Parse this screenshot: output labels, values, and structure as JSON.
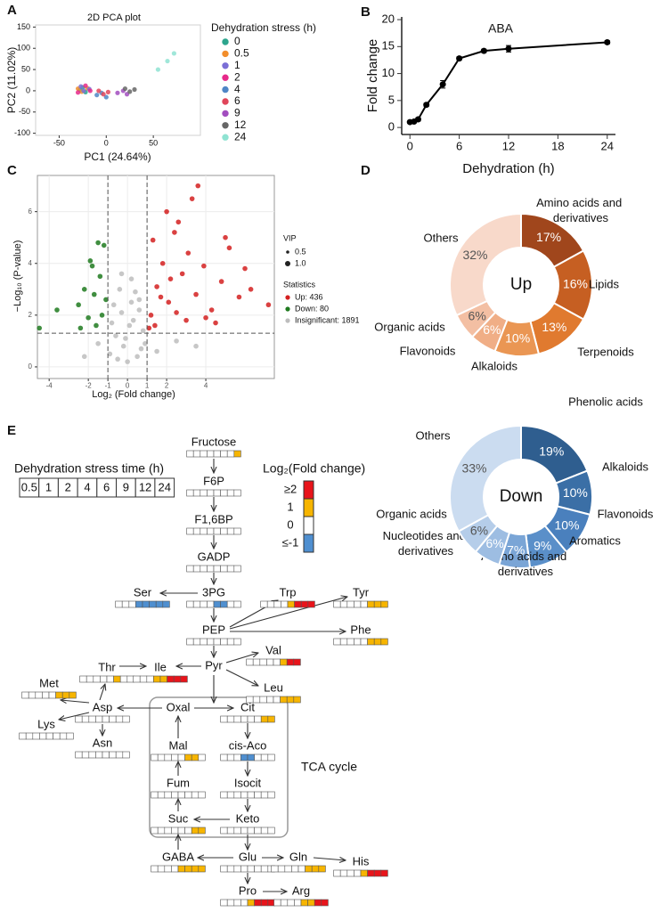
{
  "panel_labels": [
    "A",
    "B",
    "C",
    "D",
    "E"
  ],
  "chart_data": [
    {
      "type": "scatter",
      "title": "2D PCA plot",
      "x_label": "PC1 (24.64%)",
      "y_label": "PC2 (11.02%)",
      "xlim": [
        -75,
        100
      ],
      "ylim": [
        -105,
        155
      ],
      "xticks": [
        -50,
        0,
        50
      ],
      "yticks": [
        -100,
        -50,
        0,
        50,
        100,
        150
      ],
      "legend_title": "Dehydration stress (h)",
      "legend_position": "right",
      "series": [
        {
          "name": "0",
          "color": "#2ca58d",
          "x": [
            -28,
            -25,
            -22
          ],
          "y": [
            2,
            8,
            -3
          ]
        },
        {
          "name": "0.5",
          "color": "#f28e2b",
          "x": [
            -30,
            -26,
            -20
          ],
          "y": [
            5,
            -2,
            6
          ]
        },
        {
          "name": "1",
          "color": "#7b6fd6",
          "x": [
            -27,
            -24,
            -18
          ],
          "y": [
            10,
            0,
            4
          ]
        },
        {
          "name": "2",
          "color": "#e7298a",
          "x": [
            -30,
            -22,
            -17
          ],
          "y": [
            -4,
            12,
            0
          ]
        },
        {
          "name": "4",
          "color": "#4f86c6",
          "x": [
            -10,
            -5,
            0
          ],
          "y": [
            -10,
            -5,
            -15
          ]
        },
        {
          "name": "6",
          "color": "#e0455a",
          "x": [
            -8,
            -3,
            2
          ],
          "y": [
            0,
            -8,
            -3
          ]
        },
        {
          "name": "9",
          "color": "#a24dbf",
          "x": [
            12,
            18,
            22
          ],
          "y": [
            -5,
            0,
            -8
          ]
        },
        {
          "name": "12",
          "color": "#666666",
          "x": [
            20,
            25,
            30
          ],
          "y": [
            5,
            -2,
            3
          ]
        },
        {
          "name": "24",
          "color": "#8fe3d2",
          "x": [
            55,
            65,
            72
          ],
          "y": [
            50,
            70,
            88
          ]
        }
      ]
    },
    {
      "type": "line",
      "title": "ABA",
      "x_label": "Dehydration (h)",
      "y_label": "Fold change",
      "x": [
        0,
        0.5,
        1,
        2,
        4,
        6,
        9,
        12,
        24
      ],
      "values": [
        1,
        1.1,
        1.5,
        4.2,
        8,
        12.8,
        14.2,
        14.6,
        15.8
      ],
      "errors": [
        0.2,
        0.2,
        0.3,
        0.3,
        0.7,
        0.3,
        0.3,
        0.6,
        0.3
      ],
      "color": "#000000",
      "xlim": [
        -1,
        25
      ],
      "ylim": [
        -1.3,
        20.5
      ],
      "xticks": [
        0,
        6,
        12,
        18,
        24
      ],
      "yticks": [
        0,
        5,
        10,
        15,
        20
      ]
    },
    {
      "type": "scatter",
      "x_label": "Log₂ (Fold change)",
      "y_label": "−Log₁₀ (P-value)",
      "xlim": [
        -4.6,
        7.5
      ],
      "ylim": [
        -0.45,
        7.4
      ],
      "xticks": [
        -4,
        -2,
        -1,
        0,
        1,
        2,
        4
      ],
      "yticks": [
        0,
        2,
        4,
        6
      ],
      "grid": true,
      "threshold_x": [
        -1,
        1
      ],
      "threshold_y": 1.3,
      "size_legend": {
        "title": "VIP",
        "items": [
          0.5,
          {
            "value": 1,
            "label": "1.0"
          }
        ]
      },
      "legend_title": "Statistics",
      "legend_position": "right",
      "series": [
        {
          "name": "Up: 436",
          "color": "#d42020",
          "x": [
            1.2,
            1.5,
            1.8,
            2.1,
            2.4,
            2.8,
            3.1,
            3.5,
            3.9,
            4.3,
            4.8,
            5.2,
            5.7,
            6.3,
            7.2,
            1.4,
            2.0,
            2.6,
            3.3,
            4.0,
            1.1,
            1.7,
            2.2,
            3.0,
            5.0,
            6.0,
            1.3,
            2.5,
            3.6,
            4.5
          ],
          "y": [
            2.0,
            3.1,
            4.0,
            2.5,
            5.2,
            3.6,
            4.4,
            2.8,
            3.9,
            2.2,
            3.3,
            4.6,
            2.7,
            3.0,
            2.4,
            1.6,
            6.0,
            5.6,
            6.5,
            1.9,
            1.5,
            2.7,
            3.4,
            1.8,
            5.0,
            3.8,
            4.9,
            2.1,
            7.0,
            1.7
          ]
        },
        {
          "name": "Down: 80",
          "color": "#1f7a1f",
          "x": [
            -1.2,
            -1.4,
            -1.7,
            -1.9,
            -2.2,
            -2.5,
            -1.3,
            -1.6,
            -2.0,
            -1.1,
            -1.8,
            -2.4,
            -4.5,
            -3.6,
            -1.5
          ],
          "y": [
            4.7,
            3.5,
            2.8,
            4.1,
            3.0,
            2.4,
            2.0,
            1.6,
            1.9,
            2.6,
            3.9,
            1.5,
            1.5,
            2.2,
            4.8
          ]
        },
        {
          "name": "Insignificant: 1891",
          "color": "#bdbdbd",
          "x": [
            -0.9,
            -0.6,
            -0.3,
            0,
            0.3,
            0.6,
            0.9,
            -0.8,
            -0.4,
            0.2,
            0.5,
            0.8,
            -0.7,
            -0.1,
            0.4,
            0.7,
            -0.5,
            0.1,
            -0.2,
            0.6,
            1.5,
            2.5,
            -1.5,
            -2.2,
            3.5,
            -0.3,
            0.2
          ],
          "y": [
            0.5,
            1.2,
            2.1,
            0.2,
            1.8,
            2.6,
            0.9,
            1.7,
            3.0,
            3.4,
            0.4,
            1.4,
            2.4,
            1.1,
            2.9,
            0.7,
            0.3,
            1.6,
            0.8,
            2.2,
            0.6,
            1.0,
            0.9,
            0.4,
            0.8,
            3.6,
            2.5
          ]
        }
      ]
    },
    {
      "type": "donut",
      "center_label": "Up",
      "categories": [
        "Amino acids and derivatives",
        "Lipids",
        "Terpenoids",
        "Alkaloids",
        "Flavonoids",
        "Organic acids",
        "Others"
      ],
      "values": [
        17,
        16,
        13,
        10,
        6,
        6,
        32
      ],
      "value_labels": [
        "17%",
        "16%",
        "13%",
        "10%",
        "6%",
        "6%",
        "32%"
      ],
      "colors": [
        "#a0461c",
        "#c65f22",
        "#e07a2f",
        "#ea9653",
        "#f0ae86",
        "#f3bfa3",
        "#f8d9ca"
      ]
    },
    {
      "type": "donut",
      "center_label": "Down",
      "categories": [
        "Phenolic acids",
        "Alkaloids",
        "Flavonoids",
        "Aromatics",
        "Amino acids and derivatives",
        "Nucleotides and derivatives",
        "Organic acids",
        "Others"
      ],
      "values": [
        19,
        10,
        10,
        9,
        7,
        6,
        6,
        33
      ],
      "value_labels": [
        "19%",
        "10%",
        "10%",
        "9%",
        "7%",
        "6%",
        "6%",
        "33%"
      ],
      "colors": [
        "#2f5e8f",
        "#3b6fa6",
        "#4a80bd",
        "#5a8fc9",
        "#7aa5d6",
        "#9dbde2",
        "#b5cde9",
        "#cbdcf0"
      ]
    }
  ],
  "pathway": {
    "time_table": {
      "title": "Dehydration stress time (h)",
      "times": [
        0.5,
        1,
        2,
        4,
        6,
        9,
        12,
        24
      ]
    },
    "color_legend": {
      "title": "Log₂(Fold change)",
      "items": [
        {
          "label": "≥2",
          "level": 2,
          "color": "#e8141b"
        },
        {
          "label": "1",
          "level": 1,
          "color": "#f7b500"
        },
        {
          "label": "0",
          "level": 0,
          "color": "#ffffff"
        },
        {
          "label": "≤-1",
          "level": -1,
          "color": "#4f8fd0"
        }
      ]
    },
    "tca_label": "TCA cycle",
    "nodes": [
      {
        "label": "Fructose",
        "levels": [
          0,
          0,
          0,
          0,
          0,
          0,
          0,
          1
        ]
      },
      {
        "label": "F6P",
        "levels": [
          0,
          0,
          0,
          0,
          0,
          0,
          0,
          0
        ]
      },
      {
        "label": "F1,6BP",
        "levels": [
          0,
          0,
          0,
          0,
          0,
          0,
          0,
          0
        ]
      },
      {
        "label": "GADP",
        "levels": [
          0,
          0,
          0,
          0,
          0,
          0,
          0,
          0
        ]
      },
      {
        "label": "3PG",
        "levels": [
          0,
          0,
          0,
          0,
          -1,
          -1,
          0,
          0
        ]
      },
      {
        "label": "Ser",
        "levels": [
          0,
          0,
          0,
          -1,
          -1,
          -1,
          -1,
          -1
        ]
      },
      {
        "label": "Trp",
        "levels": [
          0,
          0,
          0,
          0,
          1,
          2,
          2,
          2
        ]
      },
      {
        "label": "Tyr",
        "levels": [
          0,
          0,
          0,
          0,
          0,
          1,
          1,
          1
        ]
      },
      {
        "label": "PEP",
        "levels": [
          0,
          0,
          0,
          0,
          0,
          0,
          0,
          0
        ]
      },
      {
        "label": "Phe",
        "levels": [
          0,
          0,
          0,
          0,
          0,
          1,
          1,
          1
        ]
      },
      {
        "label": "Pyr"
      },
      {
        "label": "Val",
        "levels": [
          0,
          0,
          0,
          0,
          0,
          1,
          2,
          2
        ]
      },
      {
        "label": "Leu",
        "levels": [
          0,
          0,
          0,
          0,
          0,
          1,
          1,
          1
        ]
      },
      {
        "label": "Thr",
        "levels": [
          0,
          0,
          0,
          0,
          0,
          1,
          0,
          0
        ]
      },
      {
        "label": "Ile",
        "levels": [
          0,
          0,
          0,
          1,
          1,
          2,
          2,
          2
        ]
      },
      {
        "label": "Met",
        "levels": [
          0,
          0,
          0,
          0,
          0,
          1,
          1,
          1
        ]
      },
      {
        "label": "Asp",
        "levels": [
          0,
          0,
          0,
          0,
          0,
          0,
          0,
          0
        ]
      },
      {
        "label": "Lys",
        "levels": [
          0,
          0,
          0,
          0,
          0,
          0,
          0,
          0
        ]
      },
      {
        "label": "Asn",
        "levels": [
          0,
          0,
          0,
          0,
          0,
          0,
          0,
          0
        ]
      },
      {
        "label": "Oxal"
      },
      {
        "label": "Cit",
        "levels": [
          0,
          0,
          0,
          0,
          0,
          0,
          1,
          1
        ]
      },
      {
        "label": "Mal",
        "levels": [
          0,
          0,
          0,
          0,
          0,
          1,
          1,
          0
        ]
      },
      {
        "label": "cis-Aco",
        "levels": [
          0,
          0,
          0,
          -1,
          -1,
          0,
          0,
          0
        ]
      },
      {
        "label": "Fum",
        "levels": [
          0,
          0,
          0,
          0,
          0,
          0,
          0,
          0
        ]
      },
      {
        "label": "Isocit",
        "levels": [
          0,
          0,
          0,
          0,
          0,
          0,
          0,
          0
        ]
      },
      {
        "label": "Suc",
        "levels": [
          0,
          0,
          0,
          0,
          0,
          0,
          1,
          1
        ]
      },
      {
        "label": "Keto",
        "levels": [
          0,
          0,
          0,
          0,
          0,
          0,
          0,
          0
        ]
      },
      {
        "label": "GABA",
        "levels": [
          0,
          0,
          0,
          0,
          1,
          1,
          1,
          1
        ]
      },
      {
        "label": "Glu",
        "levels": [
          0,
          0,
          0,
          0,
          0,
          0,
          0,
          0
        ]
      },
      {
        "label": "Gln",
        "levels": [
          0,
          0,
          0,
          0,
          0,
          1,
          1,
          1
        ]
      },
      {
        "label": "His",
        "levels": [
          0,
          0,
          0,
          0,
          1,
          2,
          2,
          2
        ]
      },
      {
        "label": "Pro",
        "levels": [
          0,
          0,
          0,
          0,
          1,
          2,
          2,
          2
        ]
      },
      {
        "label": "Arg",
        "levels": [
          0,
          0,
          0,
          0,
          1,
          1,
          2,
          2
        ]
      }
    ]
  }
}
